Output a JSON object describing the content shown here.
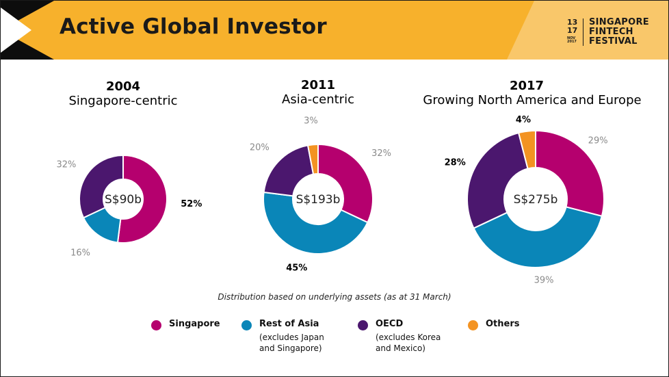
{
  "header": {
    "title": "Active Global Investor",
    "logo": {
      "date_top": "13",
      "date_bottom": "17",
      "date_month": "NOV 2017",
      "name_lines": [
        "SINGAPORE",
        "FINTECH",
        "FESTIVAL"
      ]
    }
  },
  "colors": {
    "banner": "#F7B12C",
    "banner_light": "#F9C76A",
    "Singapore": "#B5006E",
    "Rest of Asia": "#0A86B8",
    "OECD": "#4B176E",
    "Others": "#F39322"
  },
  "chart_data": [
    {
      "type": "pie",
      "year": "2004",
      "subtitle": "Singapore-centric",
      "center_label": "S$90b",
      "slices": [
        {
          "name": "Singapore",
          "value": 52,
          "label": "52%",
          "bold": true
        },
        {
          "name": "Rest of Asia",
          "value": 16,
          "label": "16%",
          "bold": false
        },
        {
          "name": "OECD",
          "value": 32,
          "label": "32%",
          "bold": false
        }
      ]
    },
    {
      "type": "pie",
      "year": "2011",
      "subtitle": "Asia-centric",
      "center_label": "S$193b",
      "slices": [
        {
          "name": "Singapore",
          "value": 32,
          "label": "32%",
          "bold": false
        },
        {
          "name": "Rest of Asia",
          "value": 45,
          "label": "45%",
          "bold": true
        },
        {
          "name": "OECD",
          "value": 20,
          "label": "20%",
          "bold": false
        },
        {
          "name": "Others",
          "value": 3,
          "label": "3%",
          "bold": false
        }
      ]
    },
    {
      "type": "pie",
      "year": "2017",
      "subtitle": "Growing North America and Europe",
      "center_label": "S$275b",
      "slices": [
        {
          "name": "Singapore",
          "value": 29,
          "label": "29%",
          "bold": false
        },
        {
          "name": "Rest of Asia",
          "value": 39,
          "label": "39%",
          "bold": false
        },
        {
          "name": "OECD",
          "value": 28,
          "label": "28%",
          "bold": true
        },
        {
          "name": "Others",
          "value": 4,
          "label": "4%",
          "bold": true
        }
      ]
    }
  ],
  "footnote": "Distribution based on underlying assets (as at 31 March)",
  "legend": [
    {
      "label": "Singapore",
      "note": []
    },
    {
      "label": "Rest of Asia",
      "note": [
        "(excludes Japan",
        "and Singapore)"
      ]
    },
    {
      "label": "OECD",
      "note": [
        "(excludes Korea",
        "and Mexico)"
      ]
    },
    {
      "label": "Others",
      "note": []
    }
  ]
}
